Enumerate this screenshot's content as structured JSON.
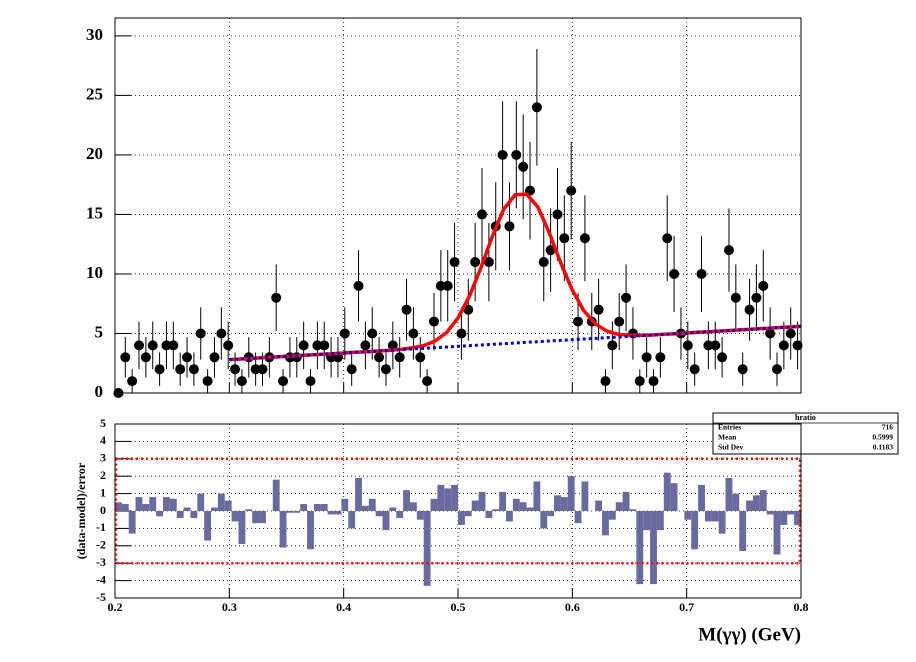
{
  "chart_data": [
    {
      "type": "errorbar",
      "xlim": [
        0.2,
        0.8
      ],
      "ylim": [
        0,
        31.5
      ],
      "xticks": [
        0.2,
        0.3,
        0.4,
        0.5,
        0.6,
        0.7,
        0.8
      ],
      "yticks": [
        0,
        5,
        10,
        15,
        20,
        25,
        30
      ],
      "show_xtick_labels": false,
      "grid": true,
      "series": [
        {
          "type": "points",
          "color": "#000000",
          "x": [
            0.203,
            0.209,
            0.215,
            0.221,
            0.227,
            0.233,
            0.239,
            0.245,
            0.251,
            0.257,
            0.263,
            0.269,
            0.275,
            0.281,
            0.287,
            0.293,
            0.299,
            0.305,
            0.311,
            0.317,
            0.323,
            0.329,
            0.335,
            0.341,
            0.347,
            0.353,
            0.359,
            0.365,
            0.371,
            0.377,
            0.383,
            0.389,
            0.395,
            0.401,
            0.407,
            0.413,
            0.419,
            0.425,
            0.431,
            0.437,
            0.443,
            0.449,
            0.455,
            0.461,
            0.467,
            0.473,
            0.479,
            0.485,
            0.491,
            0.497,
            0.503,
            0.509,
            0.515,
            0.521,
            0.527,
            0.533,
            0.539,
            0.545,
            0.551,
            0.557,
            0.563,
            0.569,
            0.575,
            0.581,
            0.587,
            0.593,
            0.599,
            0.605,
            0.611,
            0.617,
            0.623,
            0.629,
            0.635,
            0.641,
            0.647,
            0.653,
            0.659,
            0.665,
            0.671,
            0.677,
            0.683,
            0.689,
            0.695,
            0.701,
            0.707,
            0.713,
            0.719,
            0.725,
            0.731,
            0.737,
            0.743,
            0.749,
            0.755,
            0.761,
            0.767,
            0.773,
            0.779,
            0.785,
            0.791,
            0.797
          ],
          "values": [
            0,
            3,
            1,
            4,
            3,
            4,
            2,
            4,
            4,
            2,
            3,
            2,
            5,
            1,
            3,
            5,
            4,
            2,
            1,
            3,
            2,
            2,
            3,
            8,
            1,
            3,
            3,
            4,
            1,
            4,
            4,
            3,
            3,
            5,
            2,
            9,
            4,
            5,
            3,
            2,
            4,
            3,
            7,
            5,
            3,
            1,
            6,
            9,
            9,
            11,
            5,
            7,
            11,
            15,
            11,
            14,
            20,
            14,
            20,
            19,
            17,
            24,
            11,
            12,
            15,
            13,
            17,
            6,
            13,
            6,
            7,
            1,
            4,
            6,
            8,
            5,
            1,
            3,
            1,
            3,
            13,
            10,
            5,
            4,
            2,
            10,
            4,
            4,
            3,
            12,
            8,
            2,
            7,
            8,
            9,
            5,
            2,
            4,
            5,
            4
          ],
          "errors": [
            0,
            1.7,
            1,
            2,
            1.7,
            2,
            1.4,
            2,
            2,
            1.4,
            1.7,
            1.4,
            2.2,
            1,
            1.7,
            2.2,
            2,
            1.4,
            1,
            1.7,
            1.4,
            1.4,
            1.7,
            2.8,
            1,
            1.7,
            1.7,
            2,
            1,
            2,
            2,
            1.7,
            1.7,
            2.2,
            1.4,
            3,
            2,
            2.2,
            1.7,
            1.4,
            2,
            1.7,
            2.6,
            2.2,
            1.7,
            1,
            2.4,
            3,
            3,
            3.3,
            2.2,
            2.6,
            3.3,
            3.9,
            3.3,
            3.7,
            4.5,
            3.7,
            4.5,
            4.4,
            4.1,
            4.9,
            3.3,
            3.5,
            3.9,
            3.6,
            4.1,
            2.4,
            3.6,
            2.4,
            2.6,
            1,
            2,
            2.4,
            2.8,
            2.2,
            1,
            1.7,
            1,
            1.7,
            3.6,
            3.2,
            2.2,
            2,
            1.4,
            3.2,
            2,
            2,
            1.7,
            3.5,
            2.8,
            1.4,
            2.6,
            2.8,
            3,
            2.2,
            1.4,
            2,
            2.2,
            2
          ]
        },
        {
          "type": "line",
          "color": "#ff0000",
          "dashed": false,
          "x": [
            0.3,
            0.31,
            0.32,
            0.33,
            0.34,
            0.35,
            0.36,
            0.37,
            0.38,
            0.39,
            0.4,
            0.41,
            0.42,
            0.43,
            0.44,
            0.45,
            0.46,
            0.47,
            0.48,
            0.49,
            0.5,
            0.51,
            0.52,
            0.53,
            0.54,
            0.55,
            0.56,
            0.57,
            0.58,
            0.59,
            0.6,
            0.61,
            0.62,
            0.63,
            0.64,
            0.65,
            0.66,
            0.67,
            0.68,
            0.69,
            0.7,
            0.71,
            0.72,
            0.73,
            0.74,
            0.75,
            0.76,
            0.77,
            0.78,
            0.79,
            0.8
          ],
          "values": [
            2.8,
            2.86,
            2.91,
            2.97,
            3.02,
            3.08,
            3.14,
            3.19,
            3.25,
            3.3,
            3.36,
            3.42,
            3.47,
            3.53,
            3.58,
            3.67,
            3.79,
            3.98,
            4.37,
            5.08,
            6.3,
            8.14,
            10.51,
            13.14,
            15.44,
            16.65,
            16.71,
            15.61,
            13.42,
            10.9,
            8.64,
            6.92,
            5.81,
            5.21,
            4.93,
            4.85,
            4.85,
            4.87,
            4.93,
            4.98,
            5.04,
            5.1,
            5.15,
            5.21,
            5.26,
            5.32,
            5.38,
            5.43,
            5.49,
            5.54,
            5.6
          ]
        },
        {
          "type": "line",
          "color": "#0000cc",
          "dashed": true,
          "x": [
            0.3,
            0.31,
            0.32,
            0.33,
            0.34,
            0.35,
            0.36,
            0.37,
            0.38,
            0.39,
            0.4,
            0.41,
            0.42,
            0.43,
            0.44,
            0.45,
            0.46,
            0.47,
            0.48,
            0.49,
            0.5,
            0.51,
            0.52,
            0.53,
            0.54,
            0.55,
            0.56,
            0.57,
            0.58,
            0.59,
            0.6,
            0.61,
            0.62,
            0.63,
            0.64,
            0.65,
            0.66,
            0.67,
            0.68,
            0.69,
            0.7,
            0.71,
            0.72,
            0.73,
            0.74,
            0.75,
            0.76,
            0.77,
            0.78,
            0.79,
            0.8
          ],
          "values": [
            2.8,
            2.86,
            2.91,
            2.97,
            3.02,
            3.08,
            3.14,
            3.19,
            3.25,
            3.3,
            3.36,
            3.42,
            3.47,
            3.53,
            3.58,
            3.64,
            3.7,
            3.75,
            3.81,
            3.86,
            3.92,
            3.98,
            4.03,
            4.09,
            4.14,
            4.2,
            4.26,
            4.31,
            4.37,
            4.42,
            4.48,
            4.54,
            4.59,
            4.65,
            4.7,
            4.76,
            4.82,
            4.87,
            4.93,
            4.98,
            5.04,
            5.1,
            5.15,
            5.21,
            5.26,
            5.32,
            5.38,
            5.43,
            5.49,
            5.54,
            5.6
          ]
        }
      ]
    },
    {
      "type": "histogram",
      "xlabel": "M(γγ) (GeV)",
      "ylabel": "(data-model)/error",
      "xlim": [
        0.2,
        0.8
      ],
      "ylim": [
        -5,
        5
      ],
      "xticks": [
        0.2,
        0.3,
        0.4,
        0.5,
        0.6,
        0.7,
        0.8
      ],
      "yticks": [
        -5,
        -4,
        -3,
        -2,
        -1,
        0,
        1,
        2,
        3,
        4,
        5
      ],
      "show_xtick_labels": true,
      "grid": true,
      "color": "#6a6a9e",
      "band": [
        -3,
        3
      ],
      "band_color": "#ff0000",
      "bins": [
        0.2,
        0.206,
        0.212,
        0.218,
        0.224,
        0.23,
        0.236,
        0.242,
        0.248,
        0.254,
        0.26,
        0.266,
        0.272,
        0.278,
        0.284,
        0.29,
        0.296,
        0.302,
        0.308,
        0.314,
        0.32,
        0.326,
        0.332,
        0.338,
        0.344,
        0.35,
        0.356,
        0.362,
        0.368,
        0.374,
        0.38,
        0.386,
        0.392,
        0.398,
        0.404,
        0.41,
        0.416,
        0.422,
        0.428,
        0.434,
        0.44,
        0.446,
        0.452,
        0.458,
        0.464,
        0.47,
        0.476,
        0.482,
        0.488,
        0.494,
        0.5,
        0.506,
        0.512,
        0.518,
        0.524,
        0.53,
        0.536,
        0.542,
        0.548,
        0.554,
        0.56,
        0.566,
        0.572,
        0.578,
        0.584,
        0.59,
        0.596,
        0.602,
        0.608,
        0.614,
        0.62,
        0.626,
        0.632,
        0.638,
        0.644,
        0.65,
        0.656,
        0.662,
        0.668,
        0.674,
        0.68,
        0.686,
        0.692,
        0.698,
        0.704,
        0.71,
        0.716,
        0.722,
        0.728,
        0.734,
        0.74,
        0.746,
        0.752,
        0.758,
        0.764,
        0.77,
        0.776,
        0.782,
        0.788,
        0.794,
        0.8
      ],
      "values": [
        0.5,
        0.4,
        -1.3,
        0.8,
        0.4,
        0.8,
        -0.3,
        0.8,
        0.7,
        -0.4,
        0.2,
        -0.4,
        1.0,
        -1.7,
        0.2,
        1.0,
        0.6,
        -0.6,
        -1.9,
        0.1,
        -0.7,
        -0.7,
        0,
        1.8,
        -2.1,
        -0.1,
        -0.1,
        0.4,
        -2.2,
        0.4,
        0.4,
        -0.2,
        -0.2,
        0.7,
        -1.0,
        1.9,
        0.3,
        0.7,
        -0.3,
        -1.1,
        0.2,
        -0.4,
        1.2,
        0.5,
        -0.5,
        -4.3,
        0.7,
        1.5,
        1.3,
        1.5,
        -0.8,
        -0.3,
        0.6,
        1.1,
        -0.4,
        0.1,
        1.1,
        -0.6,
        0.7,
        0.5,
        0.2,
        1.7,
        -1.0,
        -0.3,
        0.9,
        0.8,
        2.0,
        -0.7,
        1.7,
        0,
        0.6,
        -1.4,
        -0.5,
        0.5,
        1.1,
        0.1,
        -4.2,
        -1.1,
        -4.2,
        -1.1,
        2.2,
        1.6,
        0,
        -0.5,
        -2.2,
        1.5,
        -0.6,
        -0.6,
        -1.3,
        1.9,
        1.0,
        -2.3,
        0.6,
        0.9,
        1.2,
        -0.2,
        -2.5,
        -0.8,
        -0.2,
        -0.8
      ],
      "stats": {
        "title": "hratio",
        "rows": [
          {
            "label": "Entries",
            "value": 716
          },
          {
            "label": "Mean",
            "value": 0.5999
          },
          {
            "label": "Std Dev",
            "value": 0.1183
          }
        ]
      }
    }
  ]
}
